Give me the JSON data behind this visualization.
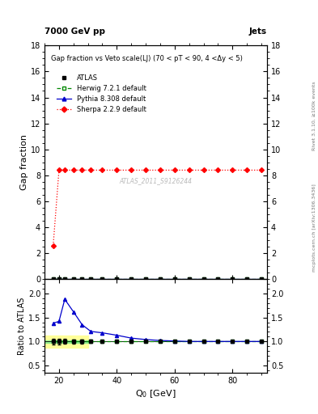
{
  "title_left": "7000 GeV pp",
  "title_right": "Jets",
  "right_label_top": "Rivet 3.1.10, ≥100k events",
  "right_label_mid": "mcplots.cern.ch [arXiv:1306.3436]",
  "plot_title": "Gap fraction vs Veto scale(LJ) (70 < pT < 90, 4 <Δy < 5)",
  "watermark": "ATLAS_2011_S9126244",
  "ylabel_main": "Gap fraction",
  "ylabel_ratio": "Ratio to ATLAS",
  "xlabel": "Q$_0$ [GeV]",
  "xlim": [
    15,
    92
  ],
  "ylim_main": [
    0,
    18
  ],
  "ylim_ratio": [
    0.35,
    2.3
  ],
  "yticks_main": [
    0,
    2,
    4,
    6,
    8,
    10,
    12,
    14,
    16,
    18
  ],
  "yticks_ratio": [
    0.5,
    1.0,
    1.5,
    2.0
  ],
  "xticks": [
    20,
    40,
    60,
    80
  ],
  "atlas_x": [
    18,
    20,
    22,
    25,
    28,
    31,
    35,
    40,
    45,
    50,
    55,
    60,
    65,
    70,
    75,
    80,
    85,
    90
  ],
  "atlas_y": [
    0.0,
    0.0,
    0.0,
    0.0,
    0.0,
    0.0,
    0.0,
    0.0,
    0.0,
    0.0,
    0.0,
    0.0,
    0.0,
    0.0,
    0.0,
    0.0,
    0.0,
    0.0
  ],
  "atlas_yerr": [
    0.02,
    0.02,
    0.02,
    0.02,
    0.02,
    0.02,
    0.02,
    0.02,
    0.02,
    0.02,
    0.02,
    0.02,
    0.02,
    0.02,
    0.02,
    0.02,
    0.02,
    0.02
  ],
  "herwig_x": [
    18,
    20,
    22,
    25,
    28,
    31,
    35,
    40,
    45,
    50,
    55,
    60,
    65,
    70,
    75,
    80,
    85,
    90
  ],
  "herwig_y": [
    0.0,
    0.0,
    0.0,
    0.0,
    0.0,
    0.0,
    0.0,
    0.0,
    0.0,
    0.0,
    0.0,
    0.0,
    0.0,
    0.0,
    0.0,
    0.0,
    0.0,
    0.0
  ],
  "pythia_x": [
    18,
    20,
    22,
    25,
    28,
    31,
    35,
    40,
    45,
    50,
    55,
    60,
    65,
    70,
    75,
    80,
    85,
    90
  ],
  "pythia_y": [
    0.0,
    0.0,
    0.0,
    0.0,
    0.0,
    0.0,
    0.0,
    0.0,
    0.0,
    0.0,
    0.0,
    0.0,
    0.0,
    0.0,
    0.0,
    0.0,
    0.0,
    0.0
  ],
  "sherpa_x": [
    18,
    20,
    22,
    25,
    28,
    31,
    35,
    40,
    45,
    50,
    55,
    60,
    65,
    70,
    75,
    80,
    85,
    90
  ],
  "sherpa_y": [
    2.6,
    8.4,
    8.4,
    8.4,
    8.4,
    8.4,
    8.4,
    8.4,
    8.4,
    8.4,
    8.4,
    8.4,
    8.4,
    8.4,
    8.4,
    8.4,
    8.4,
    8.4
  ],
  "ratio_atlas_x": [
    18,
    20,
    22,
    25,
    28,
    31,
    35,
    40,
    45,
    50,
    55,
    60,
    65,
    70,
    75,
    80,
    85,
    90
  ],
  "ratio_atlas_y": [
    1.0,
    1.0,
    1.0,
    1.0,
    1.0,
    1.0,
    1.0,
    1.0,
    1.0,
    1.0,
    1.0,
    1.0,
    1.0,
    1.0,
    1.0,
    1.0,
    1.0,
    1.0
  ],
  "ratio_atlas_yerr": [
    0.06,
    0.055,
    0.05,
    0.045,
    0.04,
    0.035,
    0.03,
    0.025,
    0.025,
    0.02,
    0.02,
    0.02,
    0.02,
    0.015,
    0.015,
    0.015,
    0.015,
    0.015
  ],
  "ratio_herwig_x": [
    18,
    20,
    22,
    25,
    28,
    31,
    35,
    40,
    45,
    50,
    55,
    60,
    65,
    70,
    75,
    80,
    85,
    90
  ],
  "ratio_herwig_y": [
    1.0,
    1.0,
    1.0,
    1.0,
    1.0,
    1.0,
    1.0,
    1.0,
    1.0,
    1.0,
    1.0,
    1.0,
    1.0,
    1.0,
    1.0,
    1.0,
    1.0,
    1.0
  ],
  "ratio_pythia_x": [
    18,
    20,
    22,
    25,
    28,
    31,
    35,
    40,
    45,
    50,
    55,
    60,
    65,
    70,
    75,
    80,
    85,
    90
  ],
  "ratio_pythia_y": [
    1.38,
    1.42,
    1.88,
    1.62,
    1.35,
    1.21,
    1.18,
    1.13,
    1.07,
    1.04,
    1.02,
    1.01,
    1.0,
    1.0,
    1.0,
    1.0,
    1.0,
    1.0
  ],
  "band_x_start": 15,
  "band_x_end": 30,
  "band_inner_low": 0.97,
  "band_inner_high": 1.03,
  "band_outer_low": 0.87,
  "band_outer_high": 1.13,
  "band_inner_color": "#90ee90",
  "band_outer_color": "#ffff99",
  "color_atlas": "#000000",
  "color_herwig": "#008800",
  "color_pythia": "#0000cc",
  "color_sherpa": "#ff0000",
  "marker_atlas": "s",
  "marker_herwig": "s",
  "marker_pythia": "^",
  "marker_sherpa": "D",
  "ls_herwig": "--",
  "ls_pythia": "-",
  "ls_sherpa": ":"
}
